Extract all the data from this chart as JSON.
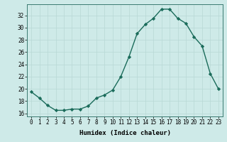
{
  "x": [
    0,
    1,
    2,
    3,
    4,
    5,
    6,
    7,
    8,
    9,
    10,
    11,
    12,
    13,
    14,
    15,
    16,
    17,
    18,
    19,
    20,
    21,
    22,
    23
  ],
  "y": [
    19.5,
    18.5,
    17.3,
    16.5,
    16.5,
    16.7,
    16.7,
    17.2,
    18.5,
    19.0,
    19.8,
    22.0,
    25.2,
    29.0,
    30.5,
    31.5,
    33.0,
    33.0,
    31.5,
    30.7,
    28.5,
    27.0,
    22.5,
    20.0
  ],
  "line_color": "#1a6b5a",
  "marker": "D",
  "markersize": 2.2,
  "linewidth": 1.0,
  "bg_color": "#ceeae8",
  "grid_color": "#b8d8d5",
  "xlabel": "Humidex (Indice chaleur)",
  "ylim": [
    15.5,
    33.8
  ],
  "xlim": [
    -0.5,
    23.5
  ],
  "yticks": [
    16,
    18,
    20,
    22,
    24,
    26,
    28,
    30,
    32
  ],
  "xticks": [
    0,
    1,
    2,
    3,
    4,
    5,
    6,
    7,
    8,
    9,
    10,
    11,
    12,
    13,
    14,
    15,
    16,
    17,
    18,
    19,
    20,
    21,
    22,
    23
  ],
  "tick_fontsize": 5.5,
  "xlabel_fontsize": 6.5
}
